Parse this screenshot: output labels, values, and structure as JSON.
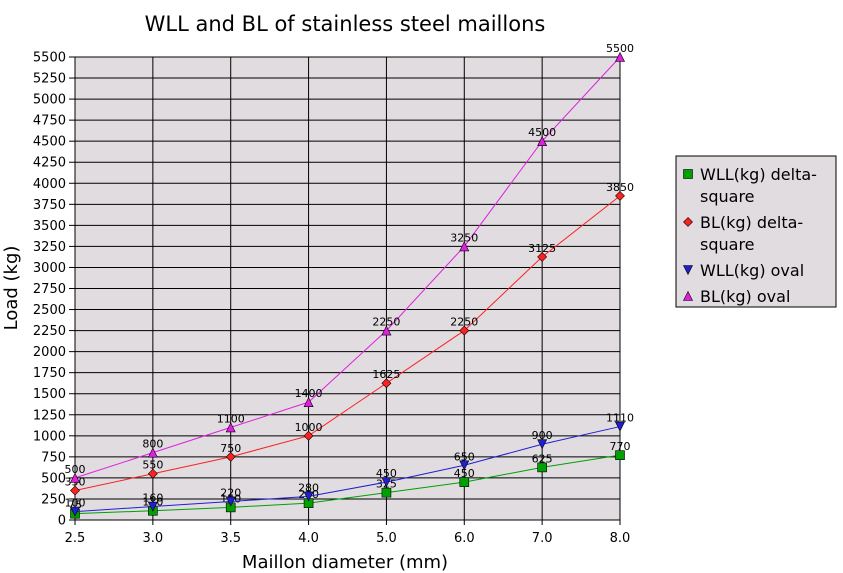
{
  "chart_data": {
    "type": "line",
    "title": "WLL and BL of stainless steel maillons",
    "xlabel": "Maillon diameter (mm)",
    "ylabel": "Load (kg)",
    "x": [
      "2.5",
      "3.0",
      "3.5",
      "4.0",
      "5.0",
      "6.0",
      "7.0",
      "8.0"
    ],
    "ylim": [
      0,
      5500
    ],
    "ytick_step": 250,
    "grid": true,
    "legend_position": "right",
    "series": [
      {
        "name": "WLL(kg) delta-square",
        "name_lines": [
          "WLL(kg) delta-",
          "square"
        ],
        "color": "#00a000",
        "marker": "square",
        "values": [
          75,
          110,
          150,
          200,
          325,
          450,
          625,
          770
        ]
      },
      {
        "name": "BL(kg) delta-square",
        "name_lines": [
          "BL(kg) delta-",
          "square"
        ],
        "color": "#ff2020",
        "marker": "diamond",
        "values": [
          350,
          550,
          750,
          1000,
          1625,
          2250,
          3125,
          3850
        ]
      },
      {
        "name": "WLL(kg) oval",
        "name_lines": [
          "WLL(kg) oval"
        ],
        "color": "#2020d0",
        "marker": "triangle-down",
        "values": [
          100,
          160,
          220,
          280,
          450,
          650,
          900,
          1110
        ]
      },
      {
        "name": "BL(kg) oval",
        "name_lines": [
          "BL(kg) oval"
        ],
        "color": "#e020e0",
        "marker": "triangle-up",
        "values": [
          500,
          800,
          1100,
          1400,
          2250,
          3250,
          4500,
          5500
        ]
      }
    ]
  }
}
